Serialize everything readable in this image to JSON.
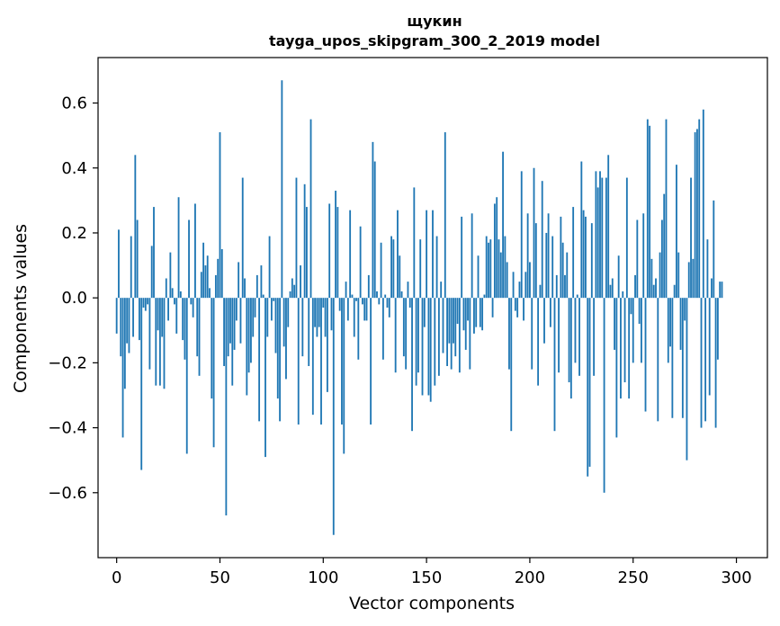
{
  "chart_data": {
    "type": "bar",
    "title": "щукин",
    "subtitle": "tayga_upos_skipgram_300_2_2019 model",
    "xlabel": "Vector components",
    "ylabel": "Components values",
    "xlim": [
      -9,
      315
    ],
    "ylim": [
      -0.8,
      0.74
    ],
    "xticks": [
      0,
      50,
      100,
      150,
      200,
      250,
      300
    ],
    "xtick_labels": [
      "0",
      "50",
      "100",
      "150",
      "200",
      "250",
      "300"
    ],
    "yticks": [
      -0.6,
      -0.4,
      -0.2,
      0.0,
      0.2,
      0.4,
      0.6
    ],
    "ytick_labels": [
      "−0.6",
      "−0.4",
      "−0.2",
      "0.0",
      "0.2",
      "0.4",
      "0.6"
    ],
    "bar_color": "#1f77b4",
    "x": "indices 0..299",
    "values": [
      -0.11,
      0.21,
      -0.18,
      -0.43,
      -0.28,
      -0.14,
      -0.17,
      0.19,
      -0.12,
      0.44,
      0.24,
      -0.13,
      -0.53,
      -0.03,
      -0.04,
      -0.02,
      -0.22,
      0.16,
      0.28,
      -0.27,
      -0.1,
      -0.27,
      -0.12,
      -0.28,
      0.06,
      -0.07,
      0.14,
      0.03,
      -0.02,
      -0.11,
      0.31,
      0.02,
      -0.13,
      -0.19,
      -0.48,
      0.24,
      -0.02,
      -0.06,
      0.29,
      -0.18,
      -0.24,
      0.08,
      0.17,
      0.1,
      0.13,
      0.03,
      -0.31,
      -0.46,
      0.07,
      0.12,
      0.51,
      0.15,
      -0.21,
      -0.67,
      -0.18,
      -0.14,
      -0.27,
      -0.16,
      -0.07,
      0.11,
      -0.14,
      0.37,
      0.06,
      -0.3,
      -0.23,
      -0.2,
      -0.12,
      -0.06,
      0.07,
      -0.38,
      0.1,
      0.01,
      -0.49,
      -0.12,
      0.19,
      -0.07,
      -0.01,
      -0.17,
      -0.31,
      -0.38,
      0.67,
      -0.15,
      -0.25,
      -0.09,
      0.02,
      0.06,
      0.04,
      0.37,
      -0.39,
      0.1,
      -0.18,
      0.35,
      0.28,
      -0.21,
      0.55,
      -0.36,
      -0.09,
      -0.12,
      -0.09,
      -0.39,
      -0.03,
      -0.12,
      -0.29,
      0.29,
      -0.1,
      -0.73,
      0.33,
      0.28,
      -0.04,
      -0.39,
      -0.48,
      0.05,
      -0.07,
      0.27,
      0.01,
      -0.12,
      -0.01,
      -0.19,
      0.22,
      -0.02,
      -0.07,
      -0.07,
      0.07,
      -0.39,
      0.48,
      0.42,
      0.02,
      -0.02,
      0.17,
      -0.19,
      0.01,
      -0.03,
      -0.06,
      0.19,
      0.18,
      -0.23,
      0.27,
      0.13,
      0.02,
      -0.18,
      -0.22,
      0.05,
      -0.03,
      -0.41,
      0.34,
      -0.27,
      -0.23,
      0.18,
      -0.3,
      -0.09,
      0.27,
      -0.3,
      -0.32,
      0.27,
      -0.27,
      0.19,
      -0.24,
      0.05,
      -0.17,
      0.51,
      -0.21,
      -0.14,
      -0.22,
      -0.14,
      -0.18,
      -0.08,
      -0.23,
      0.25,
      -0.1,
      -0.16,
      -0.07,
      -0.22,
      0.26,
      -0.11,
      -0.09,
      0.13,
      -0.09,
      -0.1,
      0.01,
      0.19,
      0.17,
      0.18,
      -0.06,
      0.29,
      0.31,
      0.18,
      0.14,
      0.45,
      0.19,
      0.11,
      -0.22,
      -0.41,
      0.08,
      -0.04,
      -0.06,
      0.05,
      0.39,
      -0.07,
      0.08,
      0.26,
      0.11,
      -0.22,
      0.4,
      0.23,
      -0.27,
      0.04,
      0.36,
      -0.14,
      0.2,
      0.26,
      -0.09,
      0.19,
      -0.41,
      0.07,
      -0.23,
      0.25,
      0.17,
      0.07,
      0.14,
      -0.26,
      -0.31,
      0.28,
      -0.2,
      0.01,
      -0.24,
      0.42,
      0.27,
      0.25,
      -0.55,
      -0.52,
      0.23,
      -0.24,
      0.39,
      0.34,
      0.39,
      0.37,
      -0.6,
      0.37,
      0.44,
      0.04,
      0.06,
      -0.16,
      -0.43,
      0.13,
      -0.31,
      0.02,
      -0.26,
      0.37,
      -0.31,
      -0.05,
      -0.2,
      0.07,
      0.24,
      -0.08,
      -0.2,
      0.26,
      -0.35,
      0.55,
      0.53,
      0.12,
      0.04,
      0.06,
      -0.38,
      0.14,
      0.24,
      0.32,
      0.55,
      -0.2,
      -0.15,
      -0.37,
      0.04,
      0.41,
      0.14,
      -0.16,
      -0.37,
      -0.07,
      -0.5,
      0.11,
      0.37,
      0.12,
      0.51,
      0.52,
      0.55,
      -0.4,
      0.58,
      -0.38,
      0.18,
      -0.3,
      0.06,
      0.3,
      -0.4,
      -0.19,
      0.05,
      0.05
    ]
  }
}
